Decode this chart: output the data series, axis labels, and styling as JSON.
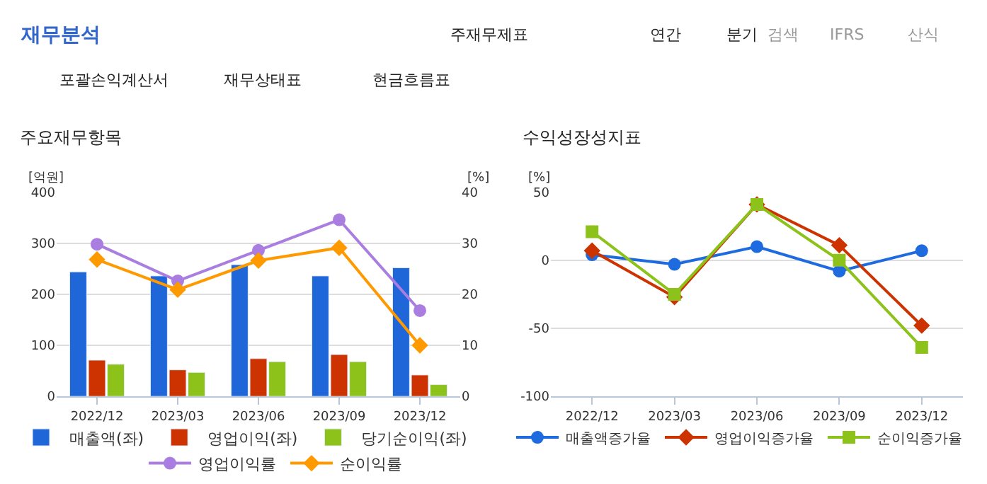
{
  "chart_data": [
    {
      "type": "other",
      "title": "재무분석",
      "annotations": [
        "주재무제표",
        "연간",
        "분기",
        "검색",
        "IFRS",
        "산식",
        "포괄손익계산서",
        "재무상태표",
        "현금흐름표"
      ]
    },
    {
      "type": "bar",
      "title": "주요재무항목",
      "ylabel": "[억원]",
      "y2label": "[%]",
      "categories": [
        "2022/12",
        "2023/03",
        "2023/06",
        "2023/09",
        "2023/12"
      ],
      "ylim": [
        0,
        400
      ],
      "yticks": [
        0,
        100,
        200,
        300,
        400
      ],
      "y2lim": [
        0,
        40
      ],
      "y2ticks": [
        0,
        10,
        20,
        30,
        40
      ],
      "grid": "y",
      "legend": "bottom",
      "series": [
        {
          "name": "매출액(좌)",
          "type": "bar",
          "color": "#1f66d9",
          "values": [
            244,
            236,
            258,
            236,
            252
          ]
        },
        {
          "name": "영업이익(좌)",
          "type": "bar",
          "color": "#cc3300",
          "values": [
            71,
            52,
            74,
            82,
            42
          ]
        },
        {
          "name": "당기순이익(좌)",
          "type": "bar",
          "color": "#8cc21a",
          "values": [
            63,
            47,
            68,
            68,
            23
          ]
        },
        {
          "name": "영업이익률",
          "type": "line",
          "axis": "y2",
          "marker": "circle",
          "color": "#a97ee0",
          "values": [
            29.8,
            22.6,
            28.6,
            34.6,
            16.8
          ]
        },
        {
          "name": "순이익률",
          "type": "line",
          "axis": "y2",
          "marker": "diamond",
          "color": "#ff9900",
          "values": [
            26.8,
            20.9,
            26.6,
            29.1,
            10.0
          ]
        }
      ]
    },
    {
      "type": "line",
      "title": "수익성장성지표",
      "ylabel": "[%]",
      "categories": [
        "2022/12",
        "2023/03",
        "2023/06",
        "2023/09",
        "2023/12"
      ],
      "ylim": [
        -100,
        50
      ],
      "yticks": [
        -100,
        -50,
        0,
        50
      ],
      "grid": "y",
      "legend": "bottom",
      "series": [
        {
          "name": "매출액증가율",
          "marker": "circle",
          "color": "#1e6be0",
          "values": [
            4,
            -3,
            10,
            -8,
            7
          ]
        },
        {
          "name": "영업이익증가율",
          "marker": "diamond",
          "color": "#cc3300",
          "values": [
            7,
            -27,
            41,
            11,
            -48
          ]
        },
        {
          "name": "순이익증가율",
          "marker": "square",
          "color": "#8cc21a",
          "values": [
            21,
            -25,
            41,
            0,
            -64
          ]
        }
      ]
    }
  ]
}
